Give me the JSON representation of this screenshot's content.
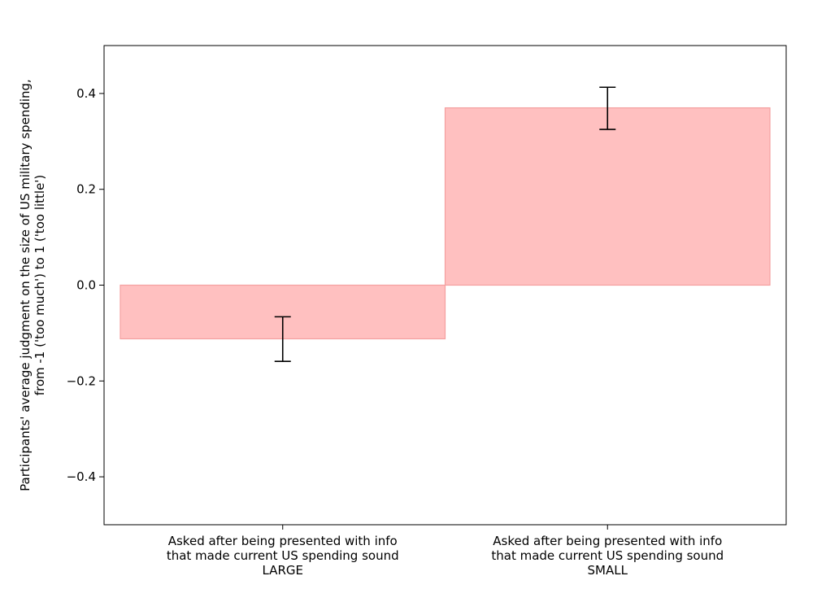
{
  "chart_data": {
    "type": "bar",
    "title": "",
    "xlabel": "",
    "ylabel_lines": [
      "Participants' average judgment on the size of US military spending,",
      "from -1 ('too much') to 1 ('too little')"
    ],
    "ylim": [
      -0.5,
      0.5
    ],
    "yticks": [
      -0.4,
      -0.2,
      0.0,
      0.2,
      0.4
    ],
    "ytick_labels": [
      "−0.4",
      "−0.2",
      "0.0",
      "0.2",
      "0.4"
    ],
    "categories": [
      [
        "Asked after being presented with info",
        "that made current US spending sound",
        "LARGE"
      ],
      [
        "Asked after being presented with info",
        "that made current US spending sound",
        "SMALL"
      ]
    ],
    "values": [
      -0.112,
      0.37
    ],
    "error_low": [
      -0.159,
      0.325
    ],
    "error_high": [
      -0.066,
      0.413
    ],
    "grid": false,
    "colors": {
      "bar_fill": "#ffc0c0",
      "bar_edge": "#f4a0a0",
      "errorbar": "#000000",
      "axis": "#000000"
    }
  }
}
